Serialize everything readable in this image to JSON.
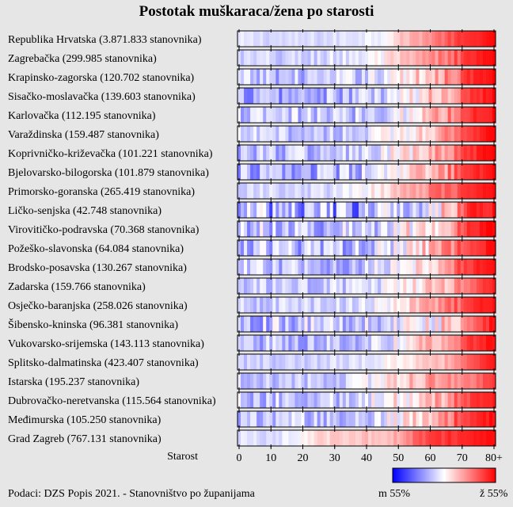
{
  "chart_data": {
    "type": "heatmap",
    "title": "Postotak muškaraca/žena po starosti",
    "xlabel": "Starost",
    "x_ticks": [
      "0",
      "10",
      "20",
      "30",
      "40",
      "50",
      "60",
      "70",
      "80+"
    ],
    "x_range": [
      0,
      81
    ],
    "colorbar": {
      "min_label": "m 55%",
      "max_label": "ž 55%",
      "colors": [
        "#0000ff",
        "#ffffff",
        "#ff0000"
      ]
    },
    "rows": [
      {
        "label": "Republika Hrvatska (3.871.833 stanovnika)",
        "profile": [
          [
            0,
            0.44
          ],
          [
            15,
            0.42
          ],
          [
            30,
            0.43
          ],
          [
            45,
            0.49
          ],
          [
            52,
            0.62
          ],
          [
            60,
            0.72
          ],
          [
            70,
            0.88
          ],
          [
            81,
            0.98
          ]
        ],
        "noise": 0.04
      },
      {
        "label": "Zagrebačka (299.985 stanovnika)",
        "profile": [
          [
            0,
            0.4
          ],
          [
            20,
            0.4
          ],
          [
            35,
            0.45
          ],
          [
            45,
            0.5
          ],
          [
            55,
            0.62
          ],
          [
            65,
            0.75
          ],
          [
            72,
            0.9
          ],
          [
            81,
            0.98
          ]
        ],
        "noise": 0.08
      },
      {
        "label": "Krapinsko-zagorska (120.702 stanovnika)",
        "profile": [
          [
            0,
            0.38
          ],
          [
            20,
            0.37
          ],
          [
            35,
            0.4
          ],
          [
            45,
            0.46
          ],
          [
            55,
            0.56
          ],
          [
            65,
            0.72
          ],
          [
            72,
            0.9
          ],
          [
            81,
            0.98
          ]
        ],
        "noise": 0.12
      },
      {
        "label": "Sisačko-moslavačka (139.603 stanovnika)",
        "profile": [
          [
            0,
            0.33
          ],
          [
            20,
            0.33
          ],
          [
            35,
            0.35
          ],
          [
            45,
            0.4
          ],
          [
            55,
            0.5
          ],
          [
            65,
            0.66
          ],
          [
            72,
            0.88
          ],
          [
            81,
            0.98
          ]
        ],
        "noise": 0.14
      },
      {
        "label": "Karlovačka (112.195 stanovnika)",
        "profile": [
          [
            0,
            0.38
          ],
          [
            20,
            0.38
          ],
          [
            35,
            0.38
          ],
          [
            45,
            0.43
          ],
          [
            55,
            0.54
          ],
          [
            65,
            0.7
          ],
          [
            72,
            0.88
          ],
          [
            81,
            0.98
          ]
        ],
        "noise": 0.13
      },
      {
        "label": "Varaždinska (159.487 stanovnika)",
        "profile": [
          [
            0,
            0.4
          ],
          [
            20,
            0.38
          ],
          [
            35,
            0.4
          ],
          [
            45,
            0.46
          ],
          [
            55,
            0.56
          ],
          [
            65,
            0.7
          ],
          [
            72,
            0.88
          ],
          [
            81,
            0.98
          ]
        ],
        "noise": 0.1
      },
      {
        "label": "Koprivničko-križevačka (101.221 stanovnika)",
        "profile": [
          [
            0,
            0.38
          ],
          [
            20,
            0.37
          ],
          [
            35,
            0.38
          ],
          [
            45,
            0.44
          ],
          [
            55,
            0.55
          ],
          [
            65,
            0.7
          ],
          [
            72,
            0.88
          ],
          [
            81,
            0.98
          ]
        ],
        "noise": 0.13
      },
      {
        "label": "Bjelovarsko-bilogorska (101.879 stanovnika)",
        "profile": [
          [
            0,
            0.34
          ],
          [
            20,
            0.33
          ],
          [
            35,
            0.35
          ],
          [
            45,
            0.42
          ],
          [
            55,
            0.55
          ],
          [
            65,
            0.68
          ],
          [
            72,
            0.88
          ],
          [
            81,
            0.98
          ]
        ],
        "noise": 0.14
      },
      {
        "label": "Primorsko-goranska (265.419 stanovnika)",
        "profile": [
          [
            0,
            0.42
          ],
          [
            20,
            0.4
          ],
          [
            35,
            0.45
          ],
          [
            45,
            0.55
          ],
          [
            55,
            0.68
          ],
          [
            65,
            0.78
          ],
          [
            72,
            0.9
          ],
          [
            81,
            0.98
          ]
        ],
        "noise": 0.07
      },
      {
        "label": "Ličko-senjska (42.748 stanovnika)",
        "profile": [
          [
            0,
            0.35
          ],
          [
            20,
            0.33
          ],
          [
            35,
            0.3
          ],
          [
            45,
            0.35
          ],
          [
            55,
            0.45
          ],
          [
            65,
            0.6
          ],
          [
            72,
            0.88
          ],
          [
            81,
            0.98
          ]
        ],
        "noise": 0.22
      },
      {
        "label": "Virovitičko-podravska (70.368 stanovnika)",
        "profile": [
          [
            0,
            0.4
          ],
          [
            20,
            0.38
          ],
          [
            35,
            0.38
          ],
          [
            45,
            0.42
          ],
          [
            55,
            0.55
          ],
          [
            65,
            0.68
          ],
          [
            72,
            0.88
          ],
          [
            81,
            0.98
          ]
        ],
        "noise": 0.16
      },
      {
        "label": "Požeško-slavonska (64.084 stanovnika)",
        "profile": [
          [
            0,
            0.38
          ],
          [
            20,
            0.36
          ],
          [
            35,
            0.37
          ],
          [
            45,
            0.43
          ],
          [
            55,
            0.55
          ],
          [
            65,
            0.68
          ],
          [
            72,
            0.88
          ],
          [
            81,
            0.98
          ]
        ],
        "noise": 0.15
      },
      {
        "label": "Brodsko-posavska (130.267 stanovnika)",
        "profile": [
          [
            0,
            0.38
          ],
          [
            20,
            0.37
          ],
          [
            35,
            0.37
          ],
          [
            45,
            0.42
          ],
          [
            55,
            0.54
          ],
          [
            65,
            0.68
          ],
          [
            72,
            0.88
          ],
          [
            81,
            0.98
          ]
        ],
        "noise": 0.12
      },
      {
        "label": "Zadarska (159.766 stanovnika)",
        "profile": [
          [
            0,
            0.38
          ],
          [
            20,
            0.38
          ],
          [
            35,
            0.4
          ],
          [
            45,
            0.45
          ],
          [
            55,
            0.54
          ],
          [
            65,
            0.62
          ],
          [
            72,
            0.75
          ],
          [
            81,
            0.96
          ]
        ],
        "noise": 0.1
      },
      {
        "label": "Osječko-baranjska (258.026 stanovnika)",
        "profile": [
          [
            0,
            0.4
          ],
          [
            20,
            0.4
          ],
          [
            35,
            0.42
          ],
          [
            45,
            0.48
          ],
          [
            55,
            0.6
          ],
          [
            65,
            0.72
          ],
          [
            72,
            0.88
          ],
          [
            81,
            0.98
          ]
        ],
        "noise": 0.08
      },
      {
        "label": "Šibensko-kninska (96.381 stanovnika)",
        "profile": [
          [
            0,
            0.38
          ],
          [
            20,
            0.38
          ],
          [
            35,
            0.4
          ],
          [
            45,
            0.42
          ],
          [
            55,
            0.48
          ],
          [
            65,
            0.58
          ],
          [
            74,
            0.8
          ],
          [
            81,
            0.98
          ]
        ],
        "noise": 0.16
      },
      {
        "label": "Vukovarsko-srijemska (143.113 stanovnika)",
        "profile": [
          [
            0,
            0.36
          ],
          [
            20,
            0.36
          ],
          [
            35,
            0.38
          ],
          [
            45,
            0.43
          ],
          [
            55,
            0.56
          ],
          [
            65,
            0.7
          ],
          [
            72,
            0.88
          ],
          [
            81,
            0.98
          ]
        ],
        "noise": 0.12
      },
      {
        "label": "Splitsko-dalmatinska (423.407 stanovnika)",
        "profile": [
          [
            0,
            0.4
          ],
          [
            20,
            0.4
          ],
          [
            35,
            0.44
          ],
          [
            45,
            0.48
          ],
          [
            55,
            0.56
          ],
          [
            65,
            0.65
          ],
          [
            72,
            0.8
          ],
          [
            81,
            0.97
          ]
        ],
        "noise": 0.05
      },
      {
        "label": "Istarska (195.237 stanovnika)",
        "profile": [
          [
            0,
            0.4
          ],
          [
            20,
            0.38
          ],
          [
            35,
            0.4
          ],
          [
            45,
            0.5
          ],
          [
            55,
            0.65
          ],
          [
            65,
            0.7
          ],
          [
            74,
            0.75
          ],
          [
            81,
            0.92
          ]
        ],
        "noise": 0.09
      },
      {
        "label": "Dubrovačko-neretvanska (115.564 stanovnika)",
        "profile": [
          [
            0,
            0.4
          ],
          [
            20,
            0.38
          ],
          [
            35,
            0.42
          ],
          [
            45,
            0.5
          ],
          [
            55,
            0.58
          ],
          [
            65,
            0.7
          ],
          [
            72,
            0.85
          ],
          [
            81,
            0.98
          ]
        ],
        "noise": 0.13
      },
      {
        "label": "Međimurska (105.250 stanovnika)",
        "profile": [
          [
            0,
            0.4
          ],
          [
            20,
            0.38
          ],
          [
            35,
            0.38
          ],
          [
            45,
            0.44
          ],
          [
            55,
            0.56
          ],
          [
            65,
            0.7
          ],
          [
            72,
            0.88
          ],
          [
            81,
            0.98
          ]
        ],
        "noise": 0.12
      },
      {
        "label": "Grad Zagreb (767.131 stanovnika)",
        "profile": [
          [
            0,
            0.44
          ],
          [
            10,
            0.43
          ],
          [
            18,
            0.48
          ],
          [
            25,
            0.58
          ],
          [
            40,
            0.62
          ],
          [
            50,
            0.66
          ],
          [
            58,
            0.85
          ],
          [
            81,
            0.98
          ]
        ],
        "noise": 0.04
      }
    ]
  },
  "footer": {
    "source": "Podaci: DZS Popis 2021. - Stanovništvo po županijama"
  }
}
